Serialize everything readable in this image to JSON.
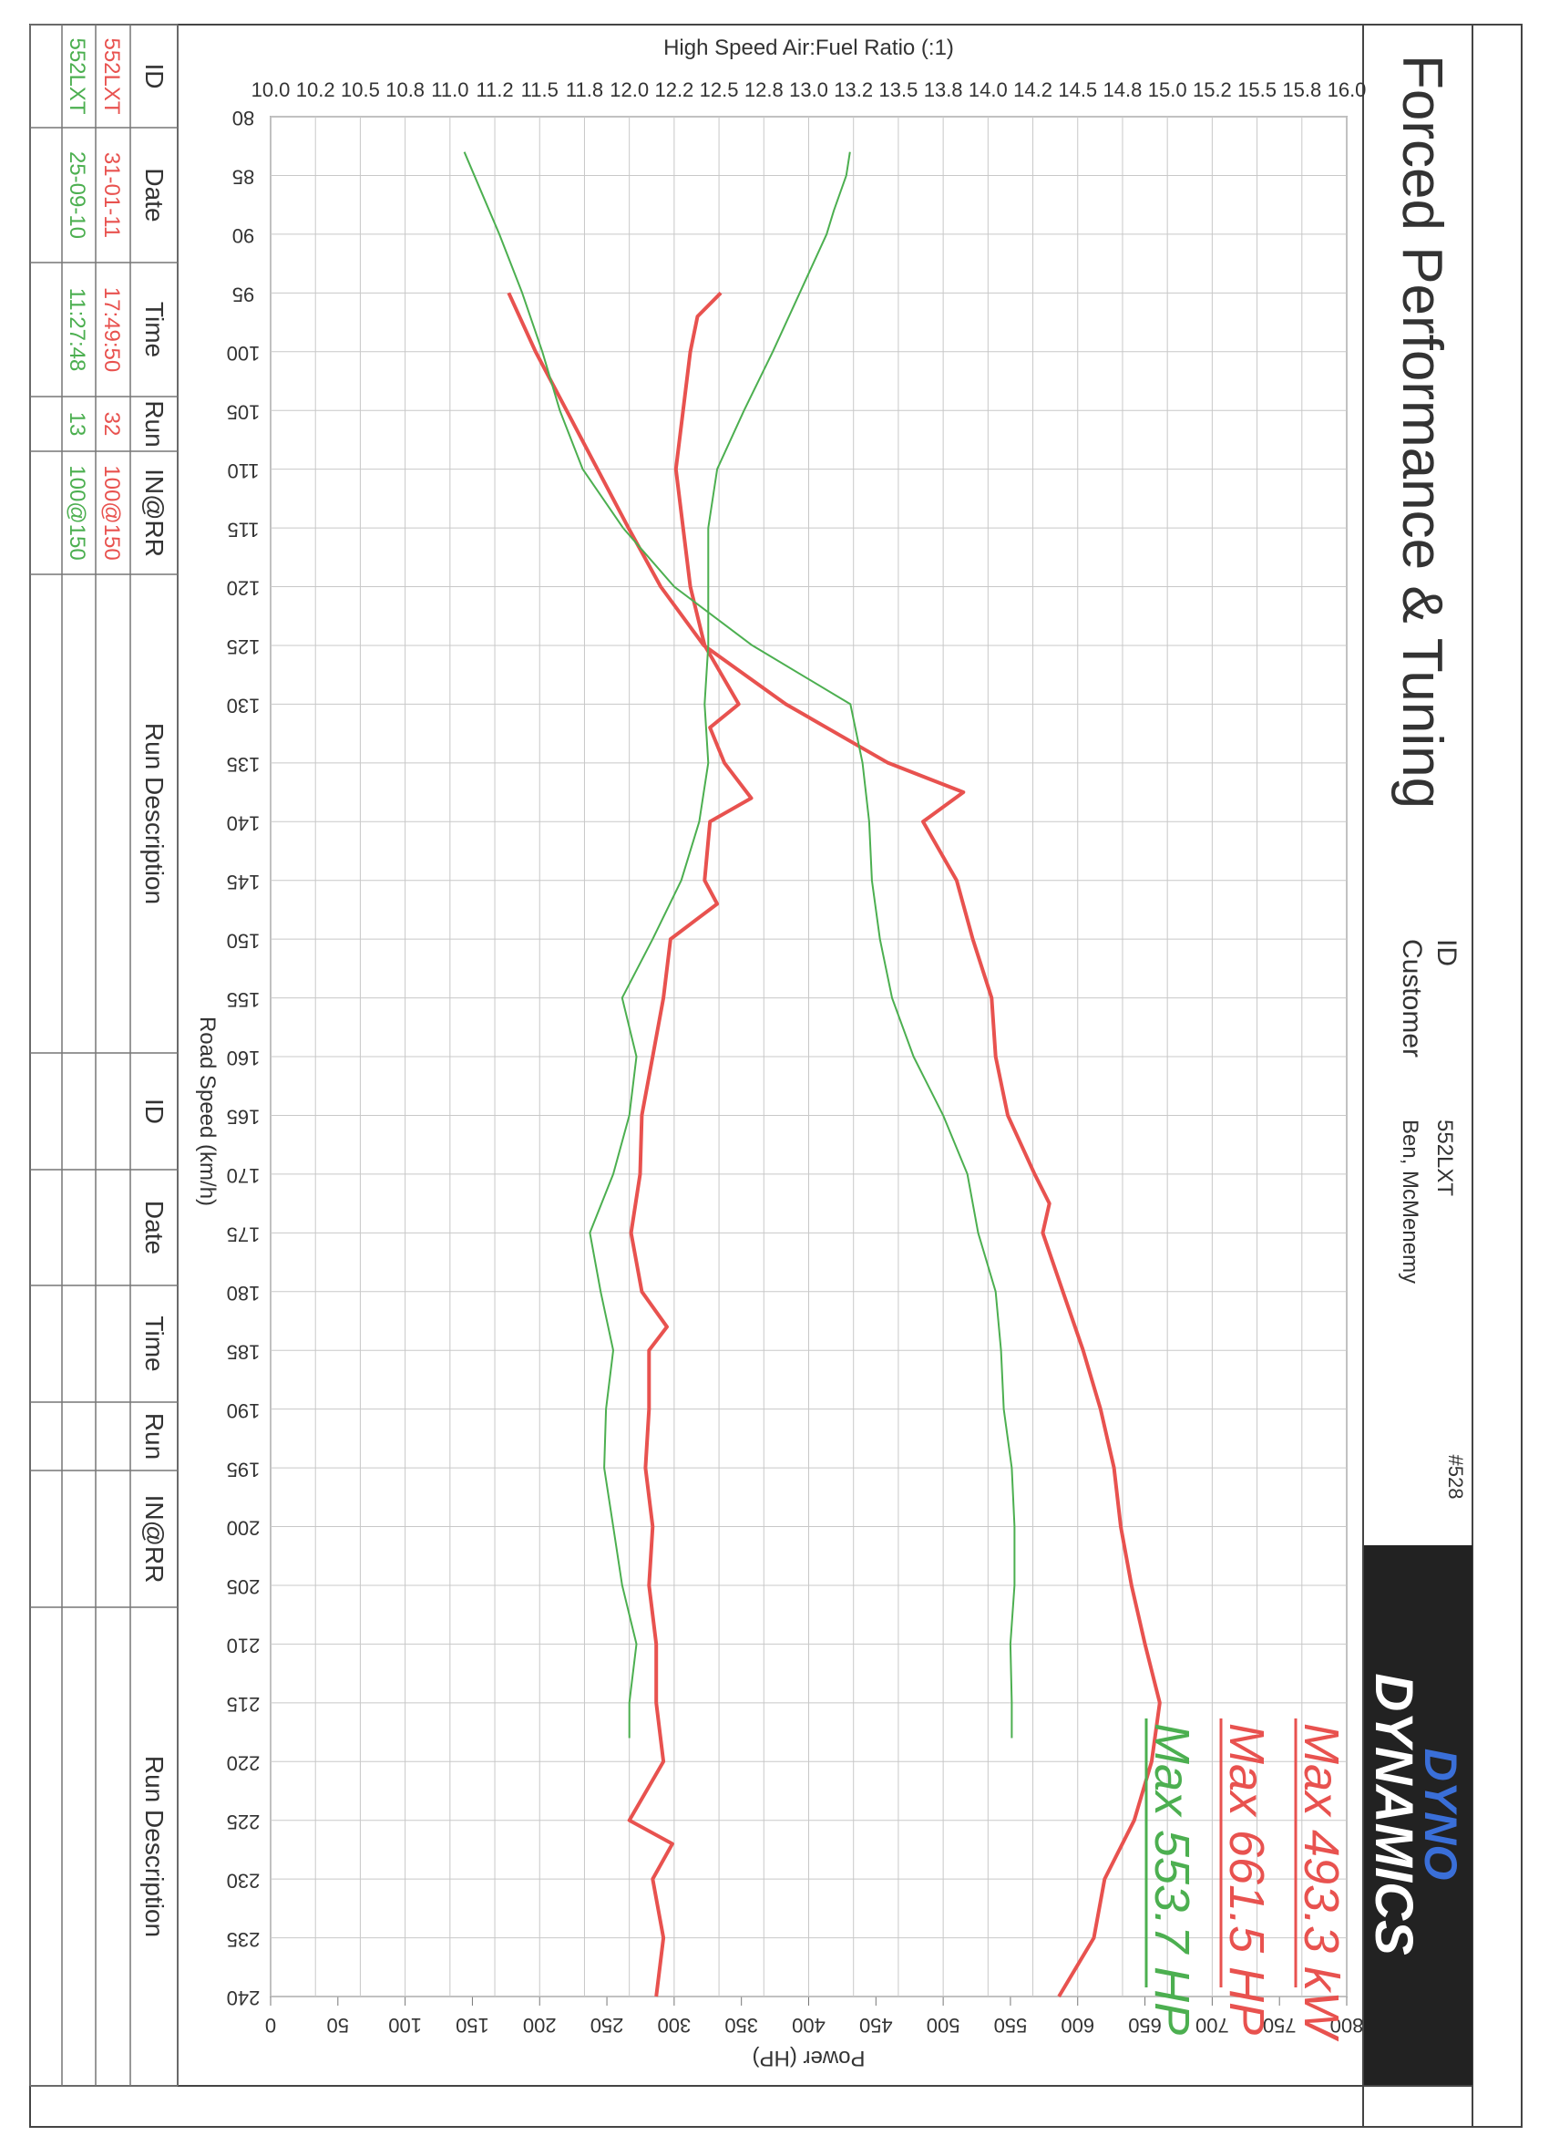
{
  "header": {
    "title": "Forced Performance & Tuning",
    "id_label": "ID",
    "customer_label": "Customer",
    "id": "552LXT",
    "customer": "Ben, McMenemy",
    "number": "#528"
  },
  "logo": {
    "line1": "DYNO",
    "line2": "DYNAMICS"
  },
  "chart_data": {
    "type": "line",
    "y_label": "High Speed Air:Fuel Ratio (:1)",
    "y2_label": "Power (HP)",
    "x_label": "Road Speed (km/h)",
    "xlim": [
      80,
      240
    ],
    "xticks": [
      80,
      85,
      90,
      95,
      100,
      105,
      110,
      115,
      120,
      125,
      130,
      135,
      140,
      145,
      150,
      155,
      160,
      165,
      170,
      175,
      180,
      185,
      190,
      195,
      200,
      205,
      210,
      215,
      220,
      225,
      230,
      235,
      240
    ],
    "ylim": [
      10,
      16
    ],
    "yticks": [
      {
        "value": 10,
        "label": "10.0"
      },
      {
        "value": 10.25,
        "label": "10.2"
      },
      {
        "value": 10.5,
        "label": "10.5"
      },
      {
        "value": 10.75,
        "label": "10.8"
      },
      {
        "value": 11,
        "label": "11.0"
      },
      {
        "value": 11.25,
        "label": "11.2"
      },
      {
        "value": 11.5,
        "label": "11.5"
      },
      {
        "value": 11.75,
        "label": "11.8"
      },
      {
        "value": 12,
        "label": "12.0"
      },
      {
        "value": 12.25,
        "label": "12.2"
      },
      {
        "value": 12.5,
        "label": "12.5"
      },
      {
        "value": 12.75,
        "label": "12.8"
      },
      {
        "value": 13,
        "label": "13.0"
      },
      {
        "value": 13.25,
        "label": "13.2"
      },
      {
        "value": 13.5,
        "label": "13.5"
      },
      {
        "value": 13.75,
        "label": "13.8"
      },
      {
        "value": 14,
        "label": "14.0"
      },
      {
        "value": 14.25,
        "label": "14.2"
      },
      {
        "value": 14.5,
        "label": "14.5"
      },
      {
        "value": 14.75,
        "label": "14.8"
      },
      {
        "value": 15,
        "label": "15.0"
      },
      {
        "value": 15.25,
        "label": "15.2"
      },
      {
        "value": 15.5,
        "label": "15.5"
      },
      {
        "value": 15.75,
        "label": "15.8"
      },
      {
        "value": 16,
        "label": "16.0"
      }
    ],
    "y2lim": [
      0,
      800
    ],
    "y2ticks": [
      0,
      50,
      100,
      150,
      200,
      250,
      300,
      350,
      400,
      450,
      500,
      550,
      600,
      650,
      700,
      750,
      800
    ],
    "grid": true,
    "series": [
      {
        "color": "#e8524f",
        "width": 4,
        "axis": "y2",
        "x": [
          95,
          100,
          105,
          110,
          115,
          120,
          125,
          130,
          135,
          137.5,
          140,
          145,
          150,
          155,
          160,
          165,
          170,
          172.5,
          175,
          180,
          185,
          190,
          195,
          200,
          205,
          210,
          215,
          220,
          225,
          230,
          235,
          240
        ],
        "values": [
          177,
          197,
          220,
          243,
          266,
          290,
          322,
          383,
          459,
          515,
          485,
          510,
          522,
          536,
          539,
          548,
          568,
          579,
          574,
          589,
          604,
          617,
          627,
          632,
          640,
          650,
          661,
          655,
          642,
          620,
          612,
          586
        ]
      },
      {
        "color": "#e8524f",
        "width": 4,
        "x": [
          95,
          97,
          100,
          105,
          110,
          115,
          120,
          125,
          130,
          132,
          135,
          138,
          140,
          145,
          147,
          150,
          155,
          160,
          165,
          170,
          175,
          180,
          183,
          185,
          190,
          195,
          200,
          205,
          210,
          215,
          220,
          225,
          227,
          230,
          235,
          240
        ],
        "values": [
          12.51,
          12.38,
          12.34,
          12.3,
          12.26,
          12.3,
          12.34,
          12.42,
          12.61,
          12.45,
          12.53,
          12.68,
          12.45,
          12.42,
          12.49,
          12.23,
          12.19,
          12.13,
          12.07,
          12.06,
          12.01,
          12.07,
          12.21,
          12.11,
          12.11,
          12.09,
          12.13,
          12.11,
          12.15,
          12.15,
          12.19,
          12.0,
          12.24,
          12.13,
          12.19,
          12.15
        ]
      },
      {
        "color": "#4caf50",
        "width": 2,
        "axis": "y2",
        "x": [
          83,
          90,
          95,
          100,
          105,
          110,
          115,
          120,
          125,
          130,
          135,
          140,
          145,
          150,
          155,
          160,
          165,
          170,
          175,
          180,
          185,
          190,
          195,
          200,
          205,
          210,
          215,
          218
        ],
        "values": [
          144,
          170,
          187,
          202,
          215,
          232,
          262,
          300,
          358,
          431,
          440,
          445,
          447,
          453,
          462,
          478,
          500,
          518,
          526,
          539,
          543,
          545,
          551,
          553,
          553,
          550,
          551,
          551
        ]
      },
      {
        "color": "#4caf50",
        "width": 2,
        "x": [
          83,
          85,
          88,
          90,
          95,
          100,
          105,
          110,
          115,
          120,
          125,
          130,
          135,
          140,
          145,
          150,
          155,
          160,
          165,
          170,
          175,
          180,
          185,
          190,
          195,
          200,
          205,
          210,
          215,
          218
        ],
        "values": [
          13.23,
          13.21,
          13.14,
          13.1,
          12.95,
          12.8,
          12.64,
          12.49,
          12.44,
          12.44,
          12.44,
          12.42,
          12.44,
          12.39,
          12.29,
          12.13,
          11.96,
          12.04,
          12.0,
          11.91,
          11.78,
          11.84,
          11.91,
          11.87,
          11.86,
          11.91,
          11.96,
          12.04,
          12.0,
          12.0
        ]
      }
    ],
    "annotations": [
      {
        "text": "Max 493.3 kW",
        "color": "#e8524f"
      },
      {
        "text": "Max 661.5 HP",
        "color": "#e8524f"
      },
      {
        "text": "Max 553.7 HP",
        "color": "#4caf50"
      }
    ]
  },
  "table": {
    "columns": [
      "ID",
      "Date",
      "Time",
      "Run",
      "IN@RR",
      "Run Description",
      "ID",
      "Date",
      "Time",
      "Run",
      "IN@RR",
      "Run Description"
    ],
    "rows": [
      {
        "color": "#e8524f",
        "cells": [
          "552LXT",
          "31-01-11",
          "17:49:50",
          "32",
          "100@150"
        ]
      },
      {
        "color": "#4caf50",
        "cells": [
          "552LXT",
          "25-09-10",
          "11:27:48",
          "13",
          "100@150"
        ]
      }
    ]
  }
}
